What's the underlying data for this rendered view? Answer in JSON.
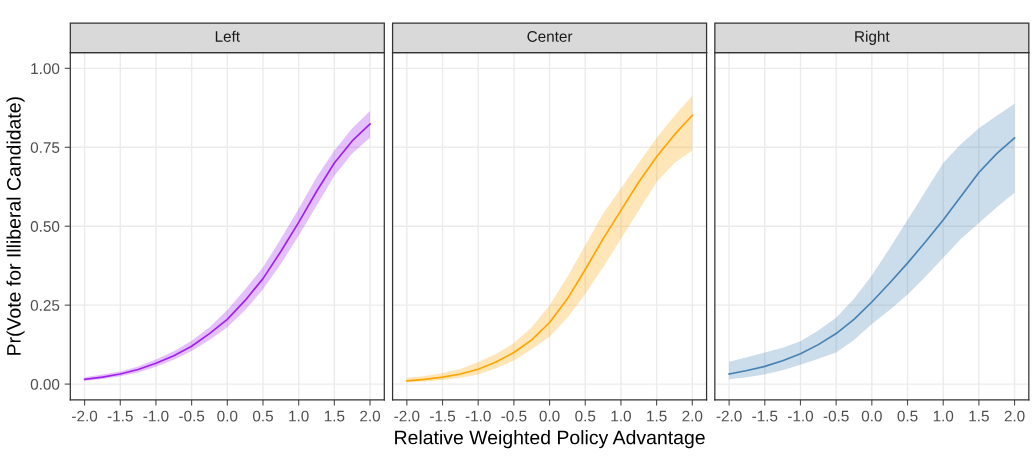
{
  "chart_data": [
    {
      "type": "line",
      "title": "Left",
      "ylabel": "Pr(Vote for Illiberal Candidate)",
      "x": [
        -2,
        -1.75,
        -1.5,
        -1.25,
        -1,
        -0.75,
        -0.5,
        -0.25,
        0,
        0.25,
        0.5,
        0.75,
        1,
        1.25,
        1.5,
        1.75,
        2
      ],
      "xlim": [
        -2.2,
        2.2
      ],
      "ylim": [
        -0.05,
        1.05
      ],
      "xticks": [
        {
          "value": -2,
          "label": "-2.0"
        },
        {
          "value": -1.5,
          "label": "-1.5"
        },
        {
          "value": -1,
          "label": "-1.0"
        },
        {
          "value": -0.5,
          "label": "-0.5"
        },
        {
          "value": 0,
          "label": "0.0"
        },
        {
          "value": 0.5,
          "label": "0.5"
        },
        {
          "value": 1,
          "label": "1.0"
        },
        {
          "value": 1.5,
          "label": "1.5"
        },
        {
          "value": 2,
          "label": "2.0"
        }
      ],
      "yticks": [
        {
          "value": 0,
          "label": "0.00"
        },
        {
          "value": 0.25,
          "label": "0.25"
        },
        {
          "value": 0.5,
          "label": "0.50"
        },
        {
          "value": 0.75,
          "label": "0.75"
        },
        {
          "value": 1,
          "label": "1.00"
        }
      ],
      "grid": true,
      "series": [
        {
          "color": "#a020f0",
          "values": [
            0.015,
            0.022,
            0.032,
            0.046,
            0.066,
            0.09,
            0.12,
            0.16,
            0.205,
            0.265,
            0.334,
            0.42,
            0.512,
            0.61,
            0.7,
            0.77,
            0.824
          ],
          "lower": [
            0.01,
            0.016,
            0.025,
            0.037,
            0.055,
            0.077,
            0.105,
            0.14,
            0.18,
            0.235,
            0.3,
            0.38,
            0.47,
            0.565,
            0.66,
            0.73,
            0.78
          ],
          "upper": [
            0.022,
            0.03,
            0.04,
            0.056,
            0.078,
            0.104,
            0.137,
            0.18,
            0.235,
            0.3,
            0.37,
            0.46,
            0.555,
            0.655,
            0.74,
            0.81,
            0.865
          ]
        }
      ]
    },
    {
      "type": "line",
      "title": "Center",
      "xlabel": "Relative Weighted Policy Advantage",
      "x": [
        -2,
        -1.75,
        -1.5,
        -1.25,
        -1,
        -0.75,
        -0.5,
        -0.25,
        0,
        0.25,
        0.5,
        0.75,
        1,
        1.25,
        1.5,
        1.75,
        2
      ],
      "xlim": [
        -2.2,
        2.2
      ],
      "ylim": [
        -0.05,
        1.05
      ],
      "xticks": [
        {
          "value": -2,
          "label": "-2.0"
        },
        {
          "value": -1.5,
          "label": "-1.5"
        },
        {
          "value": -1,
          "label": "-1.0"
        },
        {
          "value": -0.5,
          "label": "-0.5"
        },
        {
          "value": 0,
          "label": "0.0"
        },
        {
          "value": 0.5,
          "label": "0.5"
        },
        {
          "value": 1,
          "label": "1.0"
        },
        {
          "value": 1.5,
          "label": "1.5"
        },
        {
          "value": 2,
          "label": "2.0"
        }
      ],
      "yticks": [
        0,
        0.25,
        0.5,
        0.75,
        1
      ],
      "grid": true,
      "tick_labels": "x",
      "series": [
        {
          "color": "#ffa500",
          "values": [
            0.01,
            0.015,
            0.022,
            0.032,
            0.047,
            0.07,
            0.1,
            0.14,
            0.195,
            0.27,
            0.363,
            0.46,
            0.55,
            0.64,
            0.72,
            0.79,
            0.851
          ],
          "lower": [
            0.005,
            0.008,
            0.013,
            0.02,
            0.03,
            0.05,
            0.075,
            0.11,
            0.15,
            0.21,
            0.285,
            0.37,
            0.46,
            0.55,
            0.64,
            0.7,
            0.74
          ],
          "upper": [
            0.02,
            0.026,
            0.035,
            0.048,
            0.07,
            0.095,
            0.13,
            0.18,
            0.25,
            0.34,
            0.44,
            0.54,
            0.62,
            0.7,
            0.78,
            0.85,
            0.913
          ]
        }
      ]
    },
    {
      "type": "line",
      "title": "Right",
      "x": [
        -2,
        -1.75,
        -1.5,
        -1.25,
        -1,
        -0.75,
        -0.5,
        -0.25,
        0,
        0.25,
        0.5,
        0.75,
        1,
        1.25,
        1.5,
        1.75,
        2
      ],
      "xlim": [
        -2.2,
        2.2
      ],
      "ylim": [
        -0.05,
        1.05
      ],
      "xticks": [
        {
          "value": -2,
          "label": "-2.0"
        },
        {
          "value": -1.5,
          "label": "-1.5"
        },
        {
          "value": -1,
          "label": "-1.0"
        },
        {
          "value": -0.5,
          "label": "-0.5"
        },
        {
          "value": 0,
          "label": "0.0"
        },
        {
          "value": 0.5,
          "label": "0.5"
        },
        {
          "value": 1,
          "label": "1.0"
        },
        {
          "value": 1.5,
          "label": "1.5"
        },
        {
          "value": 2,
          "label": "2.0"
        }
      ],
      "yticks": [
        0,
        0.25,
        0.5,
        0.75,
        1
      ],
      "grid": true,
      "tick_labels": "x",
      "series": [
        {
          "color": "#4682b4",
          "values": [
            0.032,
            0.043,
            0.056,
            0.074,
            0.096,
            0.125,
            0.16,
            0.205,
            0.26,
            0.32,
            0.383,
            0.45,
            0.52,
            0.595,
            0.67,
            0.73,
            0.78
          ],
          "lower": [
            0.015,
            0.022,
            0.031,
            0.044,
            0.061,
            0.08,
            0.1,
            0.14,
            0.19,
            0.235,
            0.284,
            0.34,
            0.4,
            0.46,
            0.51,
            0.56,
            0.606
          ],
          "upper": [
            0.071,
            0.085,
            0.1,
            0.115,
            0.136,
            0.17,
            0.21,
            0.27,
            0.344,
            0.43,
            0.52,
            0.61,
            0.7,
            0.76,
            0.81,
            0.85,
            0.888
          ]
        }
      ]
    }
  ]
}
